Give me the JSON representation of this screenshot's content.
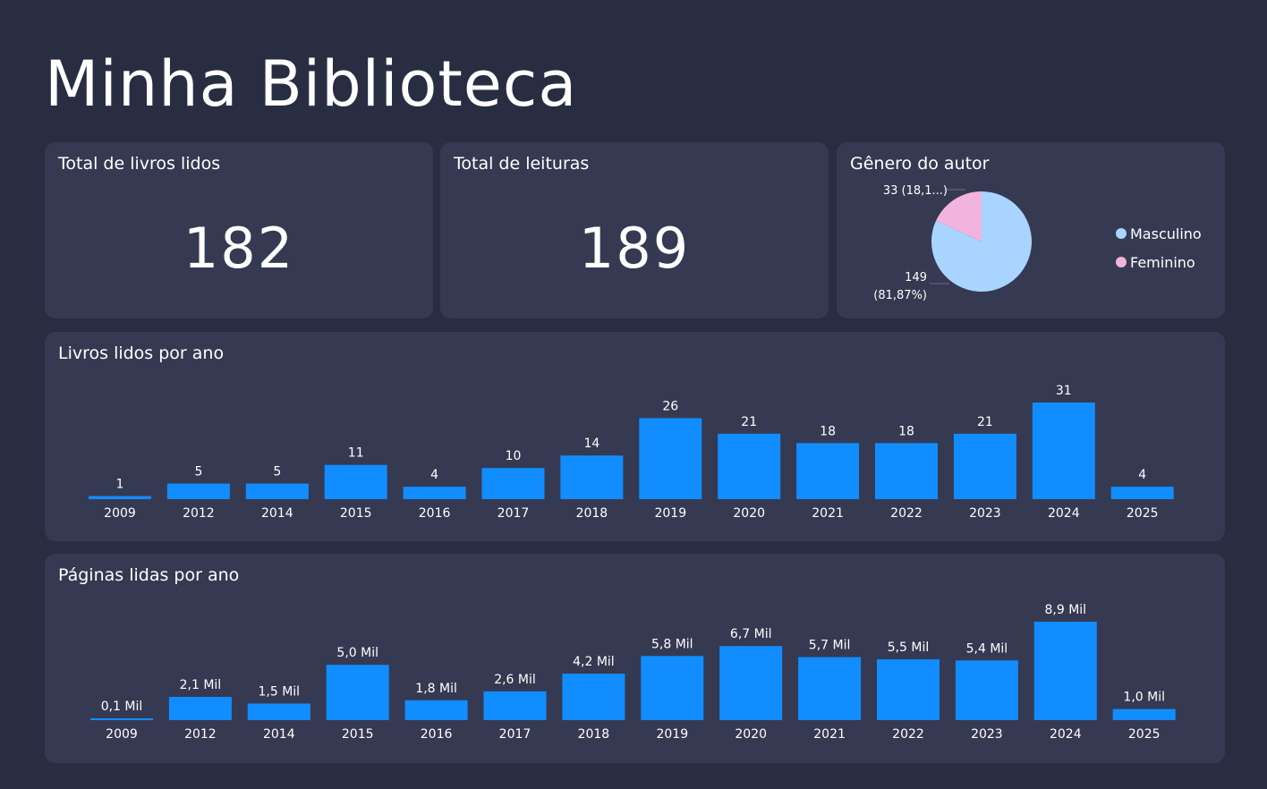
{
  "page": {
    "title": "Minha Biblioteca"
  },
  "colors": {
    "bar": "#118dff",
    "male": "#a9d4ff",
    "female": "#f2b4dc"
  },
  "kpis": {
    "total_books": {
      "label": "Total de livros lidos",
      "value": "182"
    },
    "total_reads": {
      "label": "Total de leituras",
      "value": "189"
    }
  },
  "chart_data": [
    {
      "type": "pie",
      "title": "Gênero do autor",
      "series": [
        {
          "name": "Masculino",
          "value": 149,
          "label": "149 (81,87%)"
        },
        {
          "name": "Feminino",
          "value": 33,
          "label": "33 (18,1...)"
        }
      ],
      "legend": "right"
    },
    {
      "type": "bar",
      "title": "Livros lidos por ano",
      "categories": [
        "2009",
        "2012",
        "2014",
        "2015",
        "2016",
        "2017",
        "2018",
        "2019",
        "2020",
        "2021",
        "2022",
        "2023",
        "2024",
        "2025"
      ],
      "values": [
        1,
        5,
        5,
        11,
        4,
        10,
        14,
        26,
        21,
        18,
        18,
        21,
        31,
        4
      ],
      "labels": [
        "1",
        "5",
        "5",
        "11",
        "4",
        "10",
        "14",
        "26",
        "21",
        "18",
        "18",
        "21",
        "31",
        "4"
      ]
    },
    {
      "type": "bar",
      "title": "Páginas lidas por ano",
      "categories": [
        "2009",
        "2012",
        "2014",
        "2015",
        "2016",
        "2017",
        "2018",
        "2019",
        "2020",
        "2021",
        "2022",
        "2023",
        "2024",
        "2025"
      ],
      "values": [
        100,
        2100,
        1500,
        5000,
        1800,
        2600,
        4200,
        5800,
        6700,
        5700,
        5500,
        5400,
        8900,
        1000
      ],
      "labels": [
        "0,1 Mil",
        "2,1 Mil",
        "1,5 Mil",
        "5,0 Mil",
        "1,8 Mil",
        "2,6 Mil",
        "4,2 Mil",
        "5,8 Mil",
        "6,7 Mil",
        "5,7 Mil",
        "5,5 Mil",
        "5,4 Mil",
        "8,9 Mil",
        "1,0 Mil"
      ]
    }
  ]
}
